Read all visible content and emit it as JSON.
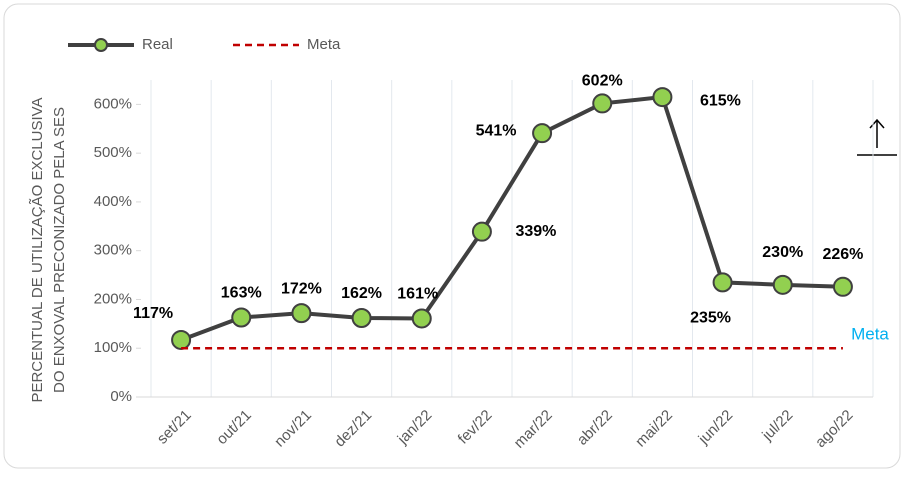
{
  "chart_data": {
    "type": "line",
    "y_label": [
      "PERCENTUAL DE UTILIZAÇÃO EXCLUSIVA",
      "DO ENXOVAL PRECONIZADO PELA SES"
    ],
    "categories": [
      "set/21",
      "out/21",
      "nov/21",
      "dez/21",
      "jan/22",
      "fev/22",
      "mar/22",
      "abr/22",
      "mai/22",
      "jun/22",
      "jul/22",
      "ago/22"
    ],
    "series": [
      {
        "name": "Real",
        "color": "#404040",
        "marker_color": "#92d050",
        "values": [
          117,
          163,
          172,
          162,
          161,
          339,
          541,
          602,
          615,
          235,
          230,
          226
        ],
        "value_labels": [
          "117%",
          "163%",
          "172%",
          "162%",
          "161%",
          "339%",
          "541%",
          "602%",
          "615%",
          "235%",
          "230%",
          "226%"
        ]
      },
      {
        "name": "Meta",
        "color": "#c00000",
        "dashed": true,
        "values": [
          100,
          100,
          100,
          100,
          100,
          100,
          100,
          100,
          100,
          100,
          100,
          100
        ]
      }
    ],
    "annotation": "Meta",
    "annotation_color": "#00b0f0",
    "ylim": [
      0,
      650
    ],
    "yticks": [
      {
        "value": 0,
        "label": "0%"
      },
      {
        "value": 100,
        "label": "100%"
      },
      {
        "value": 200,
        "label": "200%"
      },
      {
        "value": 300,
        "label": "300%"
      },
      {
        "value": 400,
        "label": "400%"
      },
      {
        "value": 500,
        "label": "500%"
      },
      {
        "value": 600,
        "label": "600%"
      }
    ],
    "grid": true
  }
}
